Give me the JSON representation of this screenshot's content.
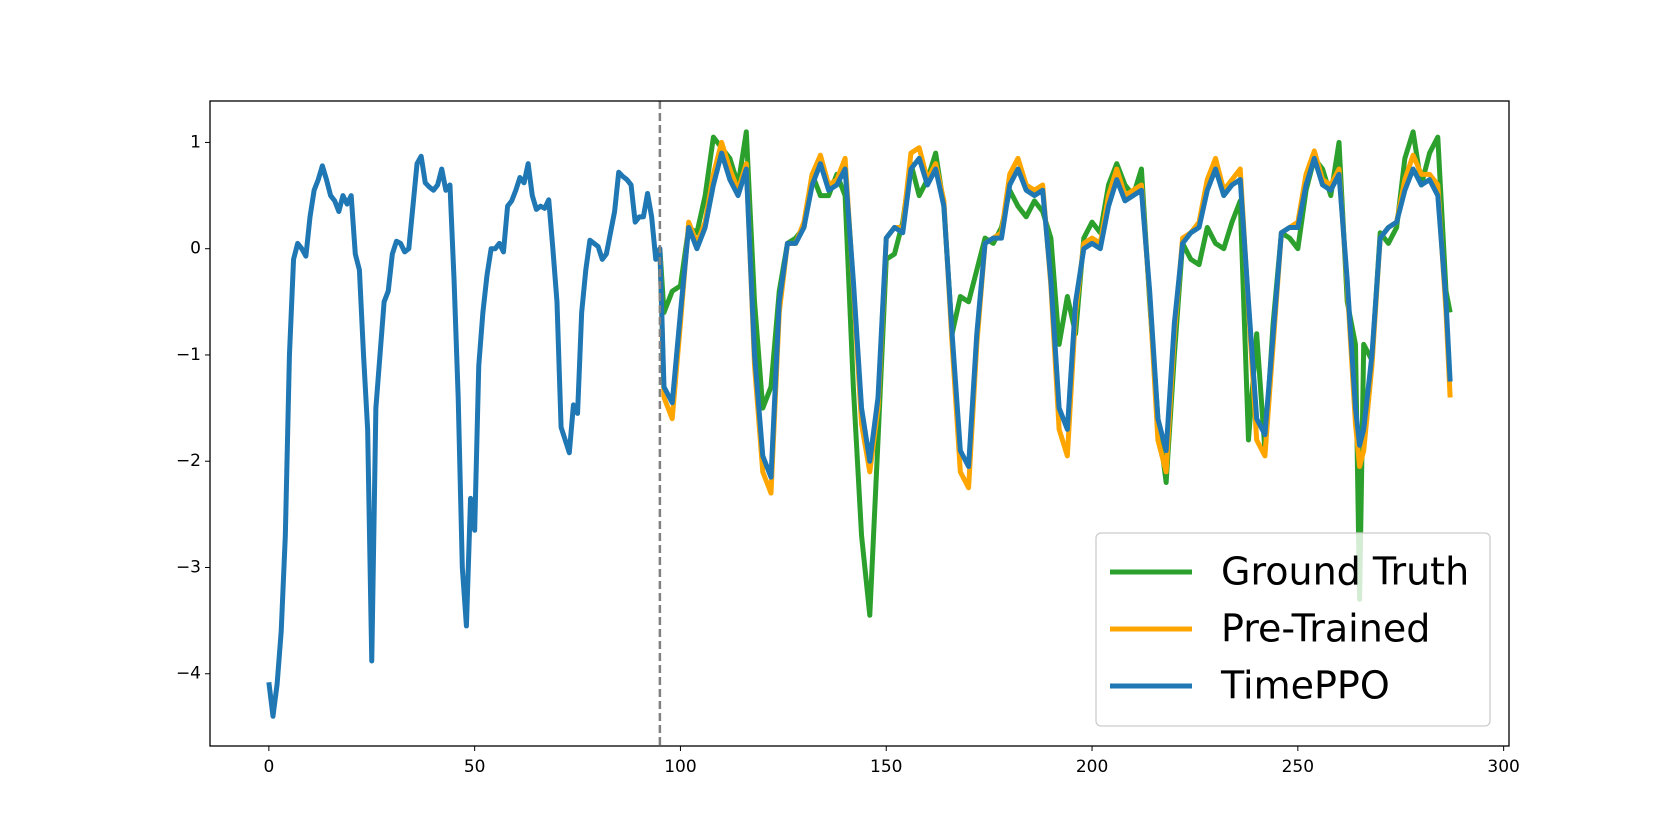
{
  "chart_data": {
    "type": "line",
    "x": [
      0,
      1,
      2,
      3,
      4,
      5,
      6,
      7,
      8,
      9,
      10,
      11,
      12,
      13,
      14,
      15,
      16,
      17,
      18,
      19,
      20,
      21,
      22,
      23,
      24,
      25,
      26,
      27,
      28,
      29,
      30,
      31,
      32,
      33,
      34,
      35,
      36,
      37,
      38,
      39,
      40,
      41,
      42,
      43,
      44,
      45,
      46,
      47,
      48,
      49,
      50,
      51,
      52,
      53,
      54,
      55,
      56,
      57,
      58,
      59,
      60,
      61,
      62,
      63,
      64,
      65,
      66,
      67,
      68,
      69,
      70,
      71,
      72,
      73,
      74,
      75,
      76,
      77,
      78,
      79,
      80,
      81,
      82,
      83,
      84,
      85,
      86,
      87,
      88,
      89,
      90,
      91,
      92,
      93,
      94,
      95,
      96,
      98,
      100,
      102,
      104,
      106,
      108,
      110,
      112,
      114,
      116,
      118,
      120,
      122,
      124,
      126,
      128,
      130,
      132,
      134,
      136,
      138,
      140,
      142,
      144,
      146,
      148,
      150,
      152,
      154,
      156,
      158,
      160,
      162,
      164,
      166,
      168,
      170,
      172,
      174,
      176,
      178,
      180,
      182,
      184,
      186,
      188,
      190,
      192,
      194,
      196,
      198,
      200,
      202,
      204,
      206,
      208,
      210,
      212,
      214,
      216,
      218,
      220,
      222,
      224,
      226,
      228,
      230,
      232,
      234,
      236,
      238,
      240,
      242,
      244,
      246,
      248,
      250,
      252,
      254,
      256,
      258,
      260,
      262,
      264,
      265,
      266,
      268,
      270,
      272,
      274,
      276,
      278,
      280,
      282,
      284,
      286,
      287
    ],
    "series": [
      {
        "name": "Ground Truth",
        "color": "#2ca02c",
        "values": [
          null,
          null,
          null,
          null,
          null,
          null,
          null,
          null,
          null,
          null,
          null,
          null,
          null,
          null,
          null,
          null,
          null,
          null,
          null,
          null,
          null,
          null,
          null,
          null,
          null,
          null,
          null,
          null,
          null,
          null,
          null,
          null,
          null,
          null,
          null,
          null,
          null,
          null,
          null,
          null,
          null,
          null,
          null,
          null,
          null,
          null,
          null,
          null,
          null,
          null,
          null,
          null,
          null,
          null,
          null,
          null,
          null,
          null,
          null,
          null,
          null,
          null,
          null,
          null,
          null,
          null,
          null,
          null,
          null,
          null,
          null,
          null,
          null,
          null,
          null,
          null,
          null,
          null,
          null,
          null,
          null,
          null,
          null,
          null,
          null,
          null,
          null,
          null,
          null,
          null,
          null,
          null,
          null,
          null,
          null,
          0.0,
          -0.6,
          -0.4,
          -0.35,
          0.2,
          0.15,
          0.5,
          1.05,
          0.95,
          0.85,
          0.6,
          1.1,
          -0.5,
          -1.5,
          -1.3,
          -0.4,
          0.05,
          0.1,
          0.2,
          0.7,
          0.5,
          0.5,
          0.7,
          0.5,
          -1.3,
          -2.7,
          -3.45,
          -1.8,
          -0.1,
          -0.05,
          0.25,
          0.8,
          0.5,
          0.65,
          0.9,
          0.4,
          -0.8,
          -0.45,
          -0.5,
          -0.2,
          0.1,
          0.05,
          0.2,
          0.55,
          0.4,
          0.3,
          0.45,
          0.35,
          0.1,
          -0.9,
          -0.45,
          -0.8,
          0.1,
          0.25,
          0.15,
          0.6,
          0.8,
          0.6,
          0.5,
          0.75,
          -0.5,
          -1.6,
          -2.2,
          -1.0,
          0.05,
          -0.1,
          -0.15,
          0.2,
          0.05,
          0.0,
          0.25,
          0.45,
          -1.8,
          -0.8,
          -1.9,
          -0.7,
          0.15,
          0.1,
          0.0,
          0.55,
          0.85,
          0.75,
          0.5,
          1.0,
          -0.5,
          -0.9,
          -3.3,
          -0.9,
          -1.05,
          0.15,
          0.05,
          0.2,
          0.85,
          1.1,
          0.6,
          0.9,
          1.05,
          -0.4,
          -0.6
        ]
      },
      {
        "name": "Pre-Trained",
        "color": "#ffa500",
        "values": [
          null,
          null,
          null,
          null,
          null,
          null,
          null,
          null,
          null,
          null,
          null,
          null,
          null,
          null,
          null,
          null,
          null,
          null,
          null,
          null,
          null,
          null,
          null,
          null,
          null,
          null,
          null,
          null,
          null,
          null,
          null,
          null,
          null,
          null,
          null,
          null,
          null,
          null,
          null,
          null,
          null,
          null,
          null,
          null,
          null,
          null,
          null,
          null,
          null,
          null,
          null,
          null,
          null,
          null,
          null,
          null,
          null,
          null,
          null,
          null,
          null,
          null,
          null,
          null,
          null,
          null,
          null,
          null,
          null,
          null,
          null,
          null,
          null,
          null,
          null,
          null,
          null,
          null,
          null,
          null,
          null,
          null,
          null,
          null,
          null,
          null,
          null,
          null,
          null,
          null,
          null,
          null,
          null,
          null,
          null,
          0.0,
          -1.4,
          -1.6,
          -0.7,
          0.25,
          0.05,
          0.25,
          0.7,
          1.0,
          0.75,
          0.55,
          0.8,
          -1.1,
          -2.1,
          -2.3,
          -0.6,
          0.05,
          0.05,
          0.25,
          0.7,
          0.88,
          0.6,
          0.65,
          0.85,
          -0.35,
          -1.65,
          -2.1,
          -1.5,
          0.1,
          0.2,
          0.2,
          0.9,
          0.95,
          0.65,
          0.8,
          0.45,
          -0.9,
          -2.1,
          -2.25,
          -0.9,
          0.05,
          0.1,
          0.15,
          0.7,
          0.85,
          0.6,
          0.55,
          0.6,
          -0.35,
          -1.7,
          -1.95,
          -0.6,
          0.05,
          0.1,
          0.05,
          0.5,
          0.75,
          0.5,
          0.55,
          0.6,
          -0.45,
          -1.8,
          -2.1,
          -0.8,
          0.1,
          0.15,
          0.25,
          0.65,
          0.85,
          0.55,
          0.65,
          0.75,
          -0.55,
          -1.8,
          -1.95,
          -0.9,
          0.15,
          0.2,
          0.25,
          0.7,
          0.92,
          0.65,
          0.6,
          0.75,
          -0.35,
          -1.65,
          -2.05,
          -1.9,
          -1.1,
          0.1,
          0.2,
          0.25,
          0.65,
          0.88,
          0.7,
          0.7,
          0.6,
          -0.6,
          -1.4
        ]
      },
      {
        "name": "TimePPO",
        "color": "#1f77b4",
        "values": [
          -4.08,
          -4.4,
          -4.1,
          -3.6,
          -2.7,
          -1.0,
          -0.1,
          0.05,
          0.0,
          -0.07,
          0.3,
          0.55,
          0.65,
          0.78,
          0.65,
          0.5,
          0.45,
          0.35,
          0.5,
          0.42,
          0.5,
          -0.05,
          -0.2,
          -1.0,
          -1.7,
          -3.88,
          -1.5,
          -1.0,
          -0.5,
          -0.4,
          -0.05,
          0.07,
          0.05,
          -0.03,
          0.0,
          0.4,
          0.8,
          0.87,
          0.62,
          0.58,
          0.55,
          0.6,
          0.75,
          0.55,
          0.6,
          -0.3,
          -1.4,
          -3.0,
          -3.55,
          -2.35,
          -2.65,
          -1.1,
          -0.6,
          -0.25,
          0.0,
          0.0,
          0.05,
          -0.03,
          0.4,
          0.45,
          0.55,
          0.67,
          0.62,
          0.8,
          0.5,
          0.37,
          0.4,
          0.38,
          0.46,
          0.0,
          -0.5,
          -1.68,
          -1.8,
          -1.92,
          -1.47,
          -1.55,
          -0.6,
          -0.2,
          0.08,
          0.05,
          0.02,
          -0.1,
          -0.05,
          0.15,
          0.35,
          0.72,
          0.68,
          0.65,
          0.6,
          0.25,
          0.3,
          0.3,
          0.52,
          0.3,
          -0.1,
          0.0,
          -1.3,
          -1.45,
          -0.6,
          0.2,
          0.0,
          0.2,
          0.6,
          0.9,
          0.65,
          0.5,
          0.75,
          -1.0,
          -1.95,
          -2.15,
          -0.5,
          0.05,
          0.05,
          0.2,
          0.6,
          0.8,
          0.55,
          0.6,
          0.75,
          -0.3,
          -1.5,
          -2.0,
          -1.4,
          0.1,
          0.2,
          0.15,
          0.75,
          0.85,
          0.6,
          0.75,
          0.4,
          -0.8,
          -1.9,
          -2.05,
          -0.8,
          0.05,
          0.1,
          0.1,
          0.6,
          0.75,
          0.55,
          0.5,
          0.55,
          -0.3,
          -1.5,
          -1.7,
          -0.5,
          0.0,
          0.05,
          0.0,
          0.4,
          0.65,
          0.45,
          0.5,
          0.55,
          -0.4,
          -1.6,
          -1.9,
          -0.7,
          0.05,
          0.15,
          0.2,
          0.55,
          0.75,
          0.5,
          0.6,
          0.65,
          -0.5,
          -1.6,
          -1.75,
          -0.8,
          0.15,
          0.2,
          0.2,
          0.6,
          0.85,
          0.6,
          0.55,
          0.7,
          -0.3,
          -1.5,
          -1.85,
          -1.7,
          -1.0,
          0.1,
          0.2,
          0.25,
          0.55,
          0.75,
          0.6,
          0.65,
          0.5,
          -0.5,
          -1.25
        ]
      }
    ],
    "vline": 95,
    "xlim": [
      -14.3,
      301.3
    ],
    "ylim": [
      -4.68,
      1.39
    ],
    "xticks": [
      0,
      50,
      100,
      150,
      200,
      250,
      300
    ],
    "yticks": [
      {
        "value": -4,
        "label": "−4"
      },
      {
        "value": -3,
        "label": "−3"
      },
      {
        "value": -2,
        "label": "−2"
      },
      {
        "value": -1,
        "label": "−1"
      },
      0,
      1
    ],
    "legend": "lower right",
    "grid": false
  }
}
